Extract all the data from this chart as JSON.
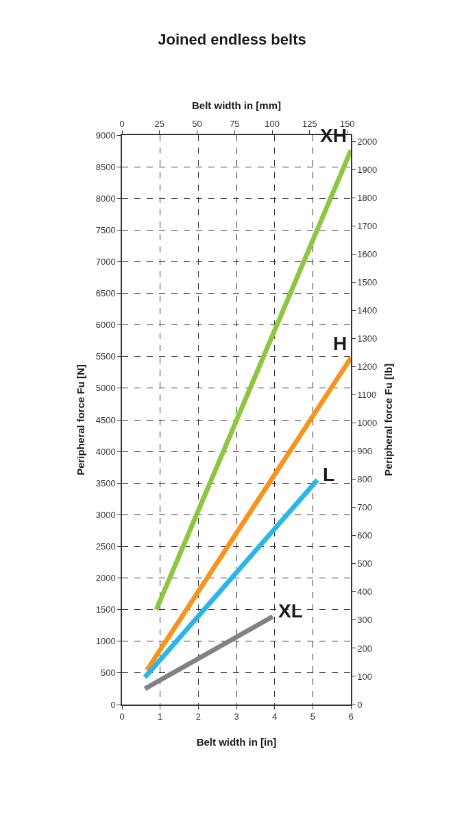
{
  "chart_data": {
    "type": "line",
    "title": "Joined endless belts",
    "xlabel": "Belt width in [in]",
    "x2label": "Belt width in [mm]",
    "ylabel": "Peripheral force Fu [N]",
    "y2label": "Peripheral force Fu [lb]",
    "xlim": [
      0,
      6
    ],
    "xticks": [
      0,
      1,
      2,
      3,
      4,
      5,
      6
    ],
    "x2lim": [
      0,
      152.4
    ],
    "x2ticks": [
      0,
      25,
      50,
      75,
      100,
      125,
      150
    ],
    "ylim": [
      0,
      9000
    ],
    "yticks": [
      0,
      500,
      1000,
      1500,
      2000,
      2500,
      3000,
      3500,
      4000,
      4500,
      5000,
      5500,
      6000,
      6500,
      7000,
      7500,
      8000,
      8500,
      9000
    ],
    "y2lim": [
      0,
      2023
    ],
    "y2ticks": [
      0,
      100,
      200,
      300,
      400,
      500,
      600,
      700,
      800,
      900,
      1000,
      1100,
      1200,
      1300,
      1400,
      1500,
      1600,
      1700,
      1800,
      1900,
      2000
    ],
    "grid": true,
    "legend": false,
    "marker": "none",
    "line_style": "solid",
    "series": [
      {
        "name": "XH",
        "color": "#8dc63f",
        "x": [
          0.9,
          6
        ],
        "values": [
          1500,
          8760
        ]
      },
      {
        "name": "H",
        "color": "#f7941d",
        "x": [
          0.65,
          6
        ],
        "values": [
          540,
          5480
        ]
      },
      {
        "name": "L",
        "color": "#29b6e8",
        "x": [
          0.6,
          5.12
        ],
        "values": [
          430,
          3550
        ]
      },
      {
        "name": "XL",
        "color": "#808285",
        "x": [
          0.6,
          3.95
        ],
        "values": [
          250,
          1390
        ]
      }
    ]
  }
}
